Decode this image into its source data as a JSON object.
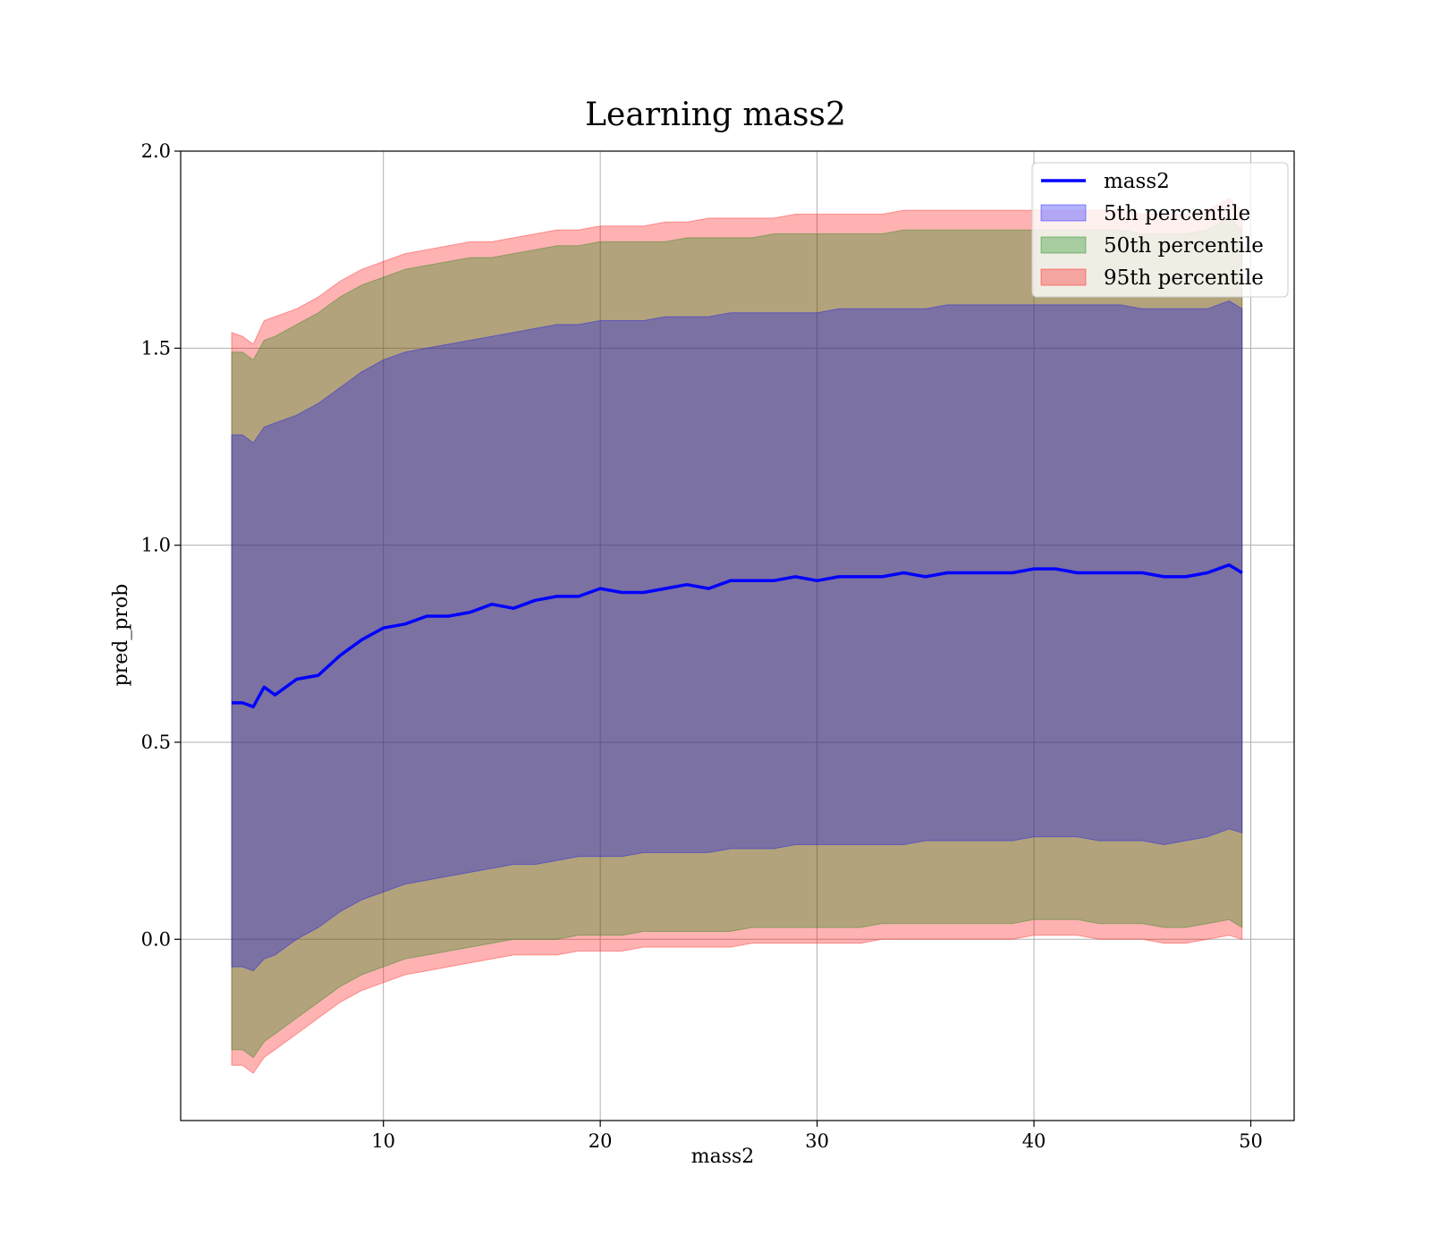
{
  "chart_data": {
    "type": "area",
    "title": "Learning mass2",
    "xlabel": "mass2",
    "ylabel": "pred_prob",
    "xlim": [
      0.65,
      52.0
    ],
    "ylim": [
      -0.46,
      2.0
    ],
    "xticks": [
      10,
      20,
      30,
      40,
      50
    ],
    "xtick_labels": [
      "10",
      "20",
      "30",
      "40",
      "50"
    ],
    "yticks": [
      0.0,
      0.5,
      1.0,
      1.5,
      2.0
    ],
    "ytick_labels": [
      "0.0",
      "0.5",
      "1.0",
      "1.5",
      "2.0"
    ],
    "grid": true,
    "legend_position": "top-right",
    "x": [
      3,
      3.5,
      4,
      4.5,
      5,
      6,
      7,
      8,
      9,
      10,
      11,
      12,
      13,
      14,
      15,
      16,
      17,
      18,
      19,
      20,
      21,
      22,
      23,
      24,
      25,
      26,
      27,
      28,
      29,
      30,
      31,
      32,
      33,
      34,
      35,
      36,
      37,
      38,
      39,
      40,
      41,
      42,
      43,
      44,
      45,
      46,
      47,
      48,
      49,
      49.6
    ],
    "series": [
      {
        "name": "mass2",
        "kind": "line",
        "color": "#0000ff",
        "values": [
          0.6,
          0.6,
          0.59,
          0.64,
          0.62,
          0.66,
          0.67,
          0.72,
          0.76,
          0.79,
          0.8,
          0.82,
          0.82,
          0.83,
          0.85,
          0.84,
          0.86,
          0.87,
          0.87,
          0.89,
          0.88,
          0.88,
          0.89,
          0.9,
          0.89,
          0.91,
          0.91,
          0.91,
          0.92,
          0.91,
          0.92,
          0.92,
          0.92,
          0.93,
          0.92,
          0.93,
          0.93,
          0.93,
          0.93,
          0.94,
          0.94,
          0.93,
          0.93,
          0.93,
          0.93,
          0.92,
          0.92,
          0.93,
          0.95,
          0.93
        ]
      },
      {
        "name": "5th percentile",
        "kind": "band",
        "color": "#0000ff",
        "alpha": 0.3,
        "upper": [
          1.28,
          1.28,
          1.26,
          1.3,
          1.31,
          1.33,
          1.36,
          1.4,
          1.44,
          1.47,
          1.49,
          1.5,
          1.51,
          1.52,
          1.53,
          1.54,
          1.55,
          1.56,
          1.56,
          1.57,
          1.57,
          1.57,
          1.58,
          1.58,
          1.58,
          1.59,
          1.59,
          1.59,
          1.59,
          1.59,
          1.6,
          1.6,
          1.6,
          1.6,
          1.6,
          1.61,
          1.61,
          1.61,
          1.61,
          1.61,
          1.61,
          1.61,
          1.61,
          1.61,
          1.6,
          1.6,
          1.6,
          1.6,
          1.62,
          1.6
        ],
        "lower": [
          -0.07,
          -0.07,
          -0.08,
          -0.05,
          -0.04,
          0.0,
          0.03,
          0.07,
          0.1,
          0.12,
          0.14,
          0.15,
          0.16,
          0.17,
          0.18,
          0.19,
          0.19,
          0.2,
          0.21,
          0.21,
          0.21,
          0.22,
          0.22,
          0.22,
          0.22,
          0.23,
          0.23,
          0.23,
          0.24,
          0.24,
          0.24,
          0.24,
          0.24,
          0.24,
          0.25,
          0.25,
          0.25,
          0.25,
          0.25,
          0.26,
          0.26,
          0.26,
          0.25,
          0.25,
          0.25,
          0.24,
          0.25,
          0.26,
          0.28,
          0.27
        ]
      },
      {
        "name": "50th percentile",
        "kind": "band",
        "color": "#008000",
        "alpha": 0.3,
        "upper": [
          1.49,
          1.49,
          1.47,
          1.52,
          1.53,
          1.56,
          1.59,
          1.63,
          1.66,
          1.68,
          1.7,
          1.71,
          1.72,
          1.73,
          1.73,
          1.74,
          1.75,
          1.76,
          1.76,
          1.77,
          1.77,
          1.77,
          1.77,
          1.78,
          1.78,
          1.78,
          1.78,
          1.79,
          1.79,
          1.79,
          1.79,
          1.79,
          1.79,
          1.8,
          1.8,
          1.8,
          1.8,
          1.8,
          1.8,
          1.8,
          1.8,
          1.8,
          1.8,
          1.8,
          1.79,
          1.79,
          1.79,
          1.8,
          1.83,
          1.8
        ],
        "lower": [
          -0.28,
          -0.28,
          -0.3,
          -0.26,
          -0.24,
          -0.2,
          -0.16,
          -0.12,
          -0.09,
          -0.07,
          -0.05,
          -0.04,
          -0.03,
          -0.02,
          -0.01,
          0.0,
          0.0,
          0.0,
          0.01,
          0.01,
          0.01,
          0.02,
          0.02,
          0.02,
          0.02,
          0.02,
          0.03,
          0.03,
          0.03,
          0.03,
          0.03,
          0.03,
          0.04,
          0.04,
          0.04,
          0.04,
          0.04,
          0.04,
          0.04,
          0.05,
          0.05,
          0.05,
          0.04,
          0.04,
          0.04,
          0.03,
          0.03,
          0.04,
          0.05,
          0.03
        ]
      },
      {
        "name": "95th percentile",
        "kind": "band",
        "color": "#ff0000",
        "alpha": 0.3,
        "upper": [
          1.54,
          1.53,
          1.51,
          1.57,
          1.58,
          1.6,
          1.63,
          1.67,
          1.7,
          1.72,
          1.74,
          1.75,
          1.76,
          1.77,
          1.77,
          1.78,
          1.79,
          1.8,
          1.8,
          1.81,
          1.81,
          1.81,
          1.82,
          1.82,
          1.83,
          1.83,
          1.83,
          1.83,
          1.84,
          1.84,
          1.84,
          1.84,
          1.84,
          1.85,
          1.85,
          1.85,
          1.85,
          1.85,
          1.85,
          1.85,
          1.85,
          1.85,
          1.85,
          1.85,
          1.84,
          1.84,
          1.84,
          1.85,
          1.88,
          1.85
        ],
        "lower": [
          -0.32,
          -0.32,
          -0.34,
          -0.3,
          -0.28,
          -0.24,
          -0.2,
          -0.16,
          -0.13,
          -0.11,
          -0.09,
          -0.08,
          -0.07,
          -0.06,
          -0.05,
          -0.04,
          -0.04,
          -0.04,
          -0.03,
          -0.03,
          -0.03,
          -0.02,
          -0.02,
          -0.02,
          -0.02,
          -0.02,
          -0.01,
          -0.01,
          -0.01,
          -0.01,
          -0.01,
          -0.01,
          0.0,
          0.0,
          0.0,
          0.0,
          0.0,
          0.0,
          0.0,
          0.01,
          0.01,
          0.01,
          0.0,
          0.0,
          0.0,
          -0.01,
          -0.01,
          0.0,
          0.01,
          0.0
        ]
      }
    ]
  }
}
